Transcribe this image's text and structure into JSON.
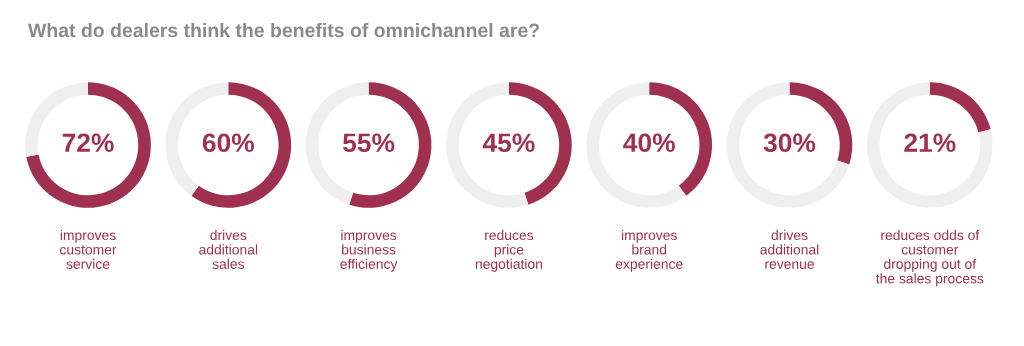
{
  "chart_data": [
    {
      "type": "donut",
      "title": "What do dealers think the benefits of omnichannel are?",
      "xlabel": "improves\ncustomer\nservice",
      "categories": [
        null,
        null
      ],
      "values": [
        72,
        28
      ],
      "value_labels": [
        "72%",
        null
      ],
      "colors": [
        "#a0304f",
        "#efefef"
      ]
    },
    {
      "type": "donut",
      "xlabel": "drives\nadditional\nsales",
      "categories": [
        null,
        null
      ],
      "values": [
        60,
        40
      ],
      "value_labels": [
        "60%",
        null
      ],
      "colors": [
        "#a0304f",
        "#efefef"
      ]
    },
    {
      "type": "donut",
      "xlabel": "improves\nbusiness\nefficiency",
      "categories": [
        null,
        null
      ],
      "values": [
        55,
        45
      ],
      "value_labels": [
        "55%",
        null
      ],
      "colors": [
        "#a0304f",
        "#efefef"
      ]
    },
    {
      "type": "donut",
      "xlabel": "reduces\nprice\nnegotiation",
      "categories": [
        null,
        null
      ],
      "values": [
        45,
        55
      ],
      "value_labels": [
        "45%",
        null
      ],
      "colors": [
        "#a0304f",
        "#efefef"
      ]
    },
    {
      "type": "donut",
      "xlabel": "improves\nbrand\nexperience",
      "categories": [
        null,
        null
      ],
      "values": [
        40,
        60
      ],
      "value_labels": [
        "40%",
        null
      ],
      "colors": [
        "#a0304f",
        "#efefef"
      ]
    },
    {
      "type": "donut",
      "xlabel": "drives\nadditional\nrevenue",
      "categories": [
        null,
        null
      ],
      "values": [
        30,
        70
      ],
      "value_labels": [
        "30%",
        null
      ],
      "colors": [
        "#a0304f",
        "#efefef"
      ]
    },
    {
      "type": "donut",
      "xlabel": "reduces odds of\ncustomer\ndropping out of\nthe sales process",
      "categories": [
        null,
        null
      ],
      "values": [
        21,
        79
      ],
      "value_labels": [
        "21%",
        null
      ],
      "colors": [
        "#a0304f",
        "#efefef"
      ]
    }
  ]
}
